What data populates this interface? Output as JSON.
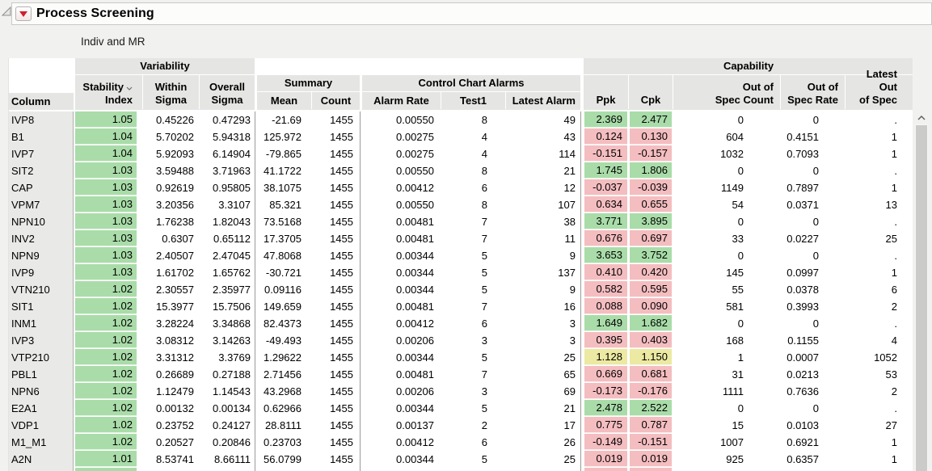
{
  "window": {
    "title": "Process Screening",
    "subtitle": "Indiv and MR"
  },
  "header": {
    "column_label": "Column",
    "groups": {
      "variability": "Variability",
      "summary": "Summary",
      "control_chart_alarms": "Control Chart Alarms",
      "capability": "Capability"
    },
    "columns": {
      "stability_l1": "Stability",
      "stability_l2": "Index",
      "within_l1": "Within",
      "within_l2": "Sigma",
      "overall_l1": "Overall",
      "overall_l2": "Sigma",
      "mean": "Mean",
      "count": "Count",
      "alarm_rate": "Alarm Rate",
      "test1": "Test1",
      "latest_alarm": "Latest Alarm",
      "ppk": "Ppk",
      "cpk": "Cpk",
      "oos_count_l1": "Out of",
      "oos_count_l2": "Spec Count",
      "oos_rate_l1": "Out of",
      "oos_rate_l2": "Spec Rate",
      "latest_oos_l1": "Latest Out",
      "latest_oos_l2": "of Spec"
    }
  },
  "colors": {
    "green": "#a9dca9",
    "red": "#f4bdc0",
    "yellow": "#ece9a2"
  },
  "rows": [
    {
      "name": "IVP8",
      "stability": "1.05",
      "within": "0.45226",
      "overall": "0.47293",
      "mean": "-21.69",
      "count": "1455",
      "alarm_rate": "0.00550",
      "test1": "8",
      "latest_alarm": "49",
      "ppk": "2.369",
      "cpk": "2.477",
      "cap": "green",
      "oos_count": "0",
      "oos_rate": "0",
      "latest_oos": "."
    },
    {
      "name": "B1",
      "stability": "1.04",
      "within": "5.70202",
      "overall": "5.94318",
      "mean": "125.972",
      "count": "1455",
      "alarm_rate": "0.00275",
      "test1": "4",
      "latest_alarm": "43",
      "ppk": "0.124",
      "cpk": "0.130",
      "cap": "red",
      "oos_count": "604",
      "oos_rate": "0.4151",
      "latest_oos": "1"
    },
    {
      "name": "IVP7",
      "stability": "1.04",
      "within": "5.92093",
      "overall": "6.14904",
      "mean": "-79.865",
      "count": "1455",
      "alarm_rate": "0.00275",
      "test1": "4",
      "latest_alarm": "114",
      "ppk": "-0.151",
      "cpk": "-0.157",
      "cap": "red",
      "oos_count": "1032",
      "oos_rate": "0.7093",
      "latest_oos": "1"
    },
    {
      "name": "SIT2",
      "stability": "1.03",
      "within": "3.59488",
      "overall": "3.71963",
      "mean": "41.1722",
      "count": "1455",
      "alarm_rate": "0.00550",
      "test1": "8",
      "latest_alarm": "21",
      "ppk": "1.745",
      "cpk": "1.806",
      "cap": "green",
      "oos_count": "0",
      "oos_rate": "0",
      "latest_oos": "."
    },
    {
      "name": "CAP",
      "stability": "1.03",
      "within": "0.92619",
      "overall": "0.95805",
      "mean": "38.1075",
      "count": "1455",
      "alarm_rate": "0.00412",
      "test1": "6",
      "latest_alarm": "12",
      "ppk": "-0.037",
      "cpk": "-0.039",
      "cap": "red",
      "oos_count": "1149",
      "oos_rate": "0.7897",
      "latest_oos": "1"
    },
    {
      "name": "VPM7",
      "stability": "1.03",
      "within": "3.20356",
      "overall": "3.3107",
      "mean": "85.321",
      "count": "1455",
      "alarm_rate": "0.00550",
      "test1": "8",
      "latest_alarm": "107",
      "ppk": "0.634",
      "cpk": "0.655",
      "cap": "red",
      "oos_count": "54",
      "oos_rate": "0.0371",
      "latest_oos": "13"
    },
    {
      "name": "NPN10",
      "stability": "1.03",
      "within": "1.76238",
      "overall": "1.82043",
      "mean": "73.5168",
      "count": "1455",
      "alarm_rate": "0.00481",
      "test1": "7",
      "latest_alarm": "38",
      "ppk": "3.771",
      "cpk": "3.895",
      "cap": "green",
      "oos_count": "0",
      "oos_rate": "0",
      "latest_oos": "."
    },
    {
      "name": "INV2",
      "stability": "1.03",
      "within": "0.6307",
      "overall": "0.65112",
      "mean": "17.3705",
      "count": "1455",
      "alarm_rate": "0.00481",
      "test1": "7",
      "latest_alarm": "11",
      "ppk": "0.676",
      "cpk": "0.697",
      "cap": "red",
      "oos_count": "33",
      "oos_rate": "0.0227",
      "latest_oos": "25"
    },
    {
      "name": "NPN9",
      "stability": "1.03",
      "within": "2.40507",
      "overall": "2.47045",
      "mean": "47.8068",
      "count": "1455",
      "alarm_rate": "0.00344",
      "test1": "5",
      "latest_alarm": "9",
      "ppk": "3.653",
      "cpk": "3.752",
      "cap": "green",
      "oos_count": "0",
      "oos_rate": "0",
      "latest_oos": "."
    },
    {
      "name": "IVP9",
      "stability": "1.03",
      "within": "1.61702",
      "overall": "1.65762",
      "mean": "-30.721",
      "count": "1455",
      "alarm_rate": "0.00344",
      "test1": "5",
      "latest_alarm": "137",
      "ppk": "0.410",
      "cpk": "0.420",
      "cap": "red",
      "oos_count": "145",
      "oos_rate": "0.0997",
      "latest_oos": "1"
    },
    {
      "name": "VTN210",
      "stability": "1.02",
      "within": "2.30557",
      "overall": "2.35977",
      "mean": "0.09116",
      "count": "1455",
      "alarm_rate": "0.00344",
      "test1": "5",
      "latest_alarm": "9",
      "ppk": "0.582",
      "cpk": "0.595",
      "cap": "red",
      "oos_count": "55",
      "oos_rate": "0.0378",
      "latest_oos": "6"
    },
    {
      "name": "SIT1",
      "stability": "1.02",
      "within": "15.3977",
      "overall": "15.7506",
      "mean": "149.659",
      "count": "1455",
      "alarm_rate": "0.00481",
      "test1": "7",
      "latest_alarm": "16",
      "ppk": "0.088",
      "cpk": "0.090",
      "cap": "red",
      "oos_count": "581",
      "oos_rate": "0.3993",
      "latest_oos": "2"
    },
    {
      "name": "INM1",
      "stability": "1.02",
      "within": "3.28224",
      "overall": "3.34868",
      "mean": "82.4373",
      "count": "1455",
      "alarm_rate": "0.00412",
      "test1": "6",
      "latest_alarm": "3",
      "ppk": "1.649",
      "cpk": "1.682",
      "cap": "green",
      "oos_count": "0",
      "oos_rate": "0",
      "latest_oos": "."
    },
    {
      "name": "IVP3",
      "stability": "1.02",
      "within": "3.08312",
      "overall": "3.14263",
      "mean": "-49.493",
      "count": "1455",
      "alarm_rate": "0.00206",
      "test1": "3",
      "latest_alarm": "3",
      "ppk": "0.395",
      "cpk": "0.403",
      "cap": "red",
      "oos_count": "168",
      "oos_rate": "0.1155",
      "latest_oos": "4"
    },
    {
      "name": "VTP210",
      "stability": "1.02",
      "within": "3.31312",
      "overall": "3.3769",
      "mean": "1.29622",
      "count": "1455",
      "alarm_rate": "0.00344",
      "test1": "5",
      "latest_alarm": "25",
      "ppk": "1.128",
      "cpk": "1.150",
      "cap": "yellow",
      "oos_count": "1",
      "oos_rate": "0.0007",
      "latest_oos": "1052"
    },
    {
      "name": "PBL1",
      "stability": "1.02",
      "within": "0.26689",
      "overall": "0.27188",
      "mean": "2.71456",
      "count": "1455",
      "alarm_rate": "0.00481",
      "test1": "7",
      "latest_alarm": "65",
      "ppk": "0.669",
      "cpk": "0.681",
      "cap": "red",
      "oos_count": "31",
      "oos_rate": "0.0213",
      "latest_oos": "53"
    },
    {
      "name": "NPN6",
      "stability": "1.02",
      "within": "1.12479",
      "overall": "1.14543",
      "mean": "43.2968",
      "count": "1455",
      "alarm_rate": "0.00206",
      "test1": "3",
      "latest_alarm": "69",
      "ppk": "-0.173",
      "cpk": "-0.176",
      "cap": "red",
      "oos_count": "1111",
      "oos_rate": "0.7636",
      "latest_oos": "2"
    },
    {
      "name": "E2A1",
      "stability": "1.02",
      "within": "0.00132",
      "overall": "0.00134",
      "mean": "0.62966",
      "count": "1455",
      "alarm_rate": "0.00344",
      "test1": "5",
      "latest_alarm": "21",
      "ppk": "2.478",
      "cpk": "2.522",
      "cap": "green",
      "oos_count": "0",
      "oos_rate": "0",
      "latest_oos": "."
    },
    {
      "name": "VDP1",
      "stability": "1.02",
      "within": "0.23752",
      "overall": "0.24127",
      "mean": "28.8111",
      "count": "1455",
      "alarm_rate": "0.00137",
      "test1": "2",
      "latest_alarm": "17",
      "ppk": "0.775",
      "cpk": "0.787",
      "cap": "red",
      "oos_count": "15",
      "oos_rate": "0.0103",
      "latest_oos": "27"
    },
    {
      "name": "M1_M1",
      "stability": "1.02",
      "within": "0.20527",
      "overall": "0.20846",
      "mean": "0.23703",
      "count": "1455",
      "alarm_rate": "0.00412",
      "test1": "6",
      "latest_alarm": "26",
      "ppk": "-0.149",
      "cpk": "-0.151",
      "cap": "red",
      "oos_count": "1007",
      "oos_rate": "0.6921",
      "latest_oos": "1"
    },
    {
      "name": "A2N",
      "stability": "1.01",
      "within": "8.53741",
      "overall": "8.66111",
      "mean": "56.0799",
      "count": "1455",
      "alarm_rate": "0.00344",
      "test1": "5",
      "latest_alarm": "25",
      "ppk": "0.019",
      "cpk": "0.019",
      "cap": "red",
      "oos_count": "925",
      "oos_rate": "0.6357",
      "latest_oos": "1"
    },
    {
      "name": "",
      "stability": "",
      "within": "",
      "overall": "",
      "mean": "",
      "count": "",
      "alarm_rate": "",
      "test1": "",
      "latest_alarm": "",
      "ppk": "",
      "cpk": "",
      "cap": "red",
      "oos_count": "",
      "oos_rate": "",
      "latest_oos": "",
      "partial": true
    }
  ]
}
